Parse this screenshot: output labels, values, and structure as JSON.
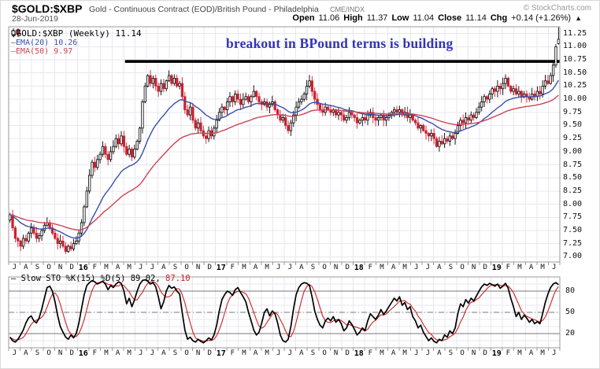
{
  "header": {
    "symbol": "$GOLD:$XBP",
    "description": "Gold - Continuous Contract (EOD)/British Pound - Philadelphia",
    "exchange": "CME/INDX",
    "credit": "© StockCharts.com",
    "date": "28-Jun-2019",
    "quote": {
      "open_label": "Open",
      "open_value": "11.06",
      "high_label": "High",
      "high_value": "11.37",
      "low_label": "Low",
      "low_value": "11.04",
      "close_label": "Close",
      "close_value": "11.14",
      "chg_label": "Chg",
      "chg_value": "+0.14 (+1.26%)",
      "direction": "▲"
    }
  },
  "main_chart": {
    "legend": {
      "dash": "—",
      "symbol_line": "$GOLD:$XBP (Weekly) 11.14",
      "ema20": "EMA(20) 10.26",
      "ema50": "EMA(50) 9.97"
    },
    "annotation": "breakout in BPound terms is building"
  },
  "lower_panel": {
    "legend": {
      "dash": "—",
      "black": "Slow STO %K(15) %D(5) 89.02,",
      "red": "87.10"
    }
  },
  "colors": {
    "up": "#000000",
    "down": "#cc2233",
    "ema20": "#3a4fa8",
    "ema50": "#cc4455",
    "annotation": "#3333bb",
    "stoch_k": "#000000",
    "stoch_d": "#cc2222",
    "grid": "#e7e7f0",
    "frame": "#999999",
    "hline": "#777777",
    "resistance": "#000000"
  },
  "chart_data": [
    {
      "type": "candlestick",
      "title": "$GOLD:$XBP (Weekly)",
      "x_months": [
        "J",
        "A",
        "S",
        "O",
        "N",
        "D",
        "16",
        "F",
        "M",
        "A",
        "M",
        "J",
        "J",
        "A",
        "S",
        "O",
        "N",
        "D",
        "17",
        "F",
        "M",
        "A",
        "M",
        "J",
        "J",
        "A",
        "S",
        "O",
        "N",
        "D",
        "18",
        "F",
        "M",
        "A",
        "M",
        "J",
        "J",
        "A",
        "S",
        "O",
        "N",
        "D",
        "19",
        "F",
        "M",
        "A",
        "M",
        "J"
      ],
      "y_ticks": [
        "11.25",
        "11.00",
        "10.75",
        "10.50",
        "10.25",
        "10.00",
        "9.75",
        "9.50",
        "9.25",
        "9.00",
        "8.75",
        "8.50",
        "8.25",
        "8.00",
        "7.75",
        "7.50",
        "7.25",
        "7.00"
      ],
      "ylim": [
        6.9,
        11.38
      ],
      "closes": [
        7.8,
        7.55,
        7.35,
        7.3,
        7.2,
        7.35,
        7.3,
        7.45,
        7.55,
        7.45,
        7.35,
        7.4,
        7.5,
        7.6,
        7.65,
        7.55,
        7.45,
        7.35,
        7.25,
        7.3,
        7.2,
        7.1,
        7.2,
        7.15,
        7.25,
        7.3,
        7.45,
        7.65,
        7.95,
        8.25,
        8.55,
        8.8,
        8.7,
        8.85,
        8.95,
        9.1,
        8.95,
        8.85,
        9.0,
        9.1,
        9.25,
        9.15,
        9.3,
        9.1,
        8.95,
        9.05,
        8.9,
        9.05,
        9.2,
        9.45,
        9.95,
        10.25,
        10.45,
        10.3,
        10.4,
        10.25,
        10.15,
        10.3,
        10.2,
        10.35,
        10.45,
        10.3,
        10.4,
        10.25,
        10.3,
        10.05,
        9.8,
        9.7,
        9.85,
        9.6,
        9.45,
        9.55,
        9.4,
        9.3,
        9.25,
        9.4,
        9.3,
        9.45,
        9.6,
        9.75,
        9.85,
        9.8,
        9.95,
        10.05,
        9.95,
        10.1,
        10.0,
        9.9,
        10.0,
        10.05,
        9.95,
        10.05,
        10.15,
        10.05,
        9.95,
        9.9,
        9.95,
        9.85,
        9.9,
        9.95,
        9.8,
        9.7,
        9.6,
        9.65,
        9.5,
        9.4,
        9.55,
        9.7,
        9.85,
        9.95,
        10.0,
        10.1,
        10.25,
        10.35,
        10.15,
        10.0,
        9.9,
        9.8,
        9.75,
        9.85,
        9.8,
        9.75,
        9.8,
        9.7,
        9.75,
        9.7,
        9.6,
        9.65,
        9.75,
        9.7,
        9.65,
        9.55,
        9.6,
        9.65,
        9.6,
        9.7,
        9.75,
        9.65,
        9.6,
        9.65,
        9.7,
        9.6,
        9.65,
        9.7,
        9.75,
        9.8,
        9.75,
        9.8,
        9.7,
        9.75,
        9.65,
        9.7,
        9.6,
        9.55,
        9.45,
        9.5,
        9.4,
        9.35,
        9.3,
        9.35,
        9.25,
        9.1,
        9.2,
        9.15,
        9.25,
        9.2,
        9.3,
        9.25,
        9.35,
        9.5,
        9.6,
        9.55,
        9.65,
        9.6,
        9.7,
        9.65,
        9.75,
        9.85,
        9.95,
        10.05,
        10.0,
        10.1,
        10.2,
        10.15,
        10.25,
        10.2,
        10.3,
        10.4,
        10.25,
        10.15,
        10.2,
        10.1,
        10.15,
        10.05,
        10.1,
        10.05,
        10.0,
        10.1,
        10.05,
        10.15,
        10.1,
        10.25,
        10.35,
        10.3,
        10.45,
        10.65,
        11.0,
        11.14
      ],
      "last_week_ohlc": {
        "open": 11.06,
        "high": 11.37,
        "low": 11.04,
        "close": 11.14
      },
      "overlays": [
        {
          "name": "EMA(20)",
          "last_value": 10.26
        },
        {
          "name": "EMA(50)",
          "last_value": 9.97
        }
      ],
      "resistance_line": {
        "level": 10.72,
        "start_week": 44,
        "end_week": 208
      }
    },
    {
      "type": "line",
      "title": "Slow STO %K(15) %D(5)",
      "k_values": [
        15,
        10,
        8,
        12,
        18,
        25,
        35,
        42,
        45,
        38,
        35,
        42,
        55,
        70,
        85,
        87,
        80,
        65,
        45,
        30,
        22,
        15,
        12,
        18,
        14,
        20,
        35,
        55,
        75,
        88,
        92,
        95,
        93,
        90,
        92,
        94,
        90,
        82,
        88,
        85,
        90,
        93,
        91,
        80,
        62,
        70,
        58,
        68,
        80,
        90,
        95,
        96,
        94,
        90,
        92,
        86,
        72,
        55,
        65,
        80,
        88,
        84,
        86,
        80,
        76,
        50,
        25,
        12,
        15,
        10,
        8,
        12,
        9,
        7,
        10,
        14,
        11,
        18,
        32,
        52,
        68,
        75,
        80,
        78,
        74,
        82,
        85,
        78,
        72,
        65,
        50,
        38,
        25,
        18,
        22,
        35,
        50,
        55,
        45,
        52,
        48,
        35,
        18,
        10,
        8,
        12,
        30,
        55,
        75,
        85,
        90,
        92,
        91,
        88,
        72,
        52,
        40,
        32,
        28,
        38,
        42,
        38,
        44,
        36,
        40,
        34,
        24,
        28,
        38,
        33,
        26,
        18,
        22,
        28,
        24,
        38,
        48,
        44,
        40,
        46,
        54,
        47,
        52,
        58,
        64,
        70,
        66,
        72,
        60,
        64,
        54,
        58,
        44,
        38,
        28,
        32,
        22,
        16,
        10,
        14,
        9,
        7,
        12,
        10,
        18,
        15,
        24,
        20,
        28,
        48,
        62,
        58,
        68,
        63,
        70,
        66,
        73,
        80,
        86,
        90,
        88,
        91,
        89,
        87,
        90,
        84,
        87,
        91,
        84,
        70,
        58,
        44,
        50,
        40,
        46,
        42,
        36,
        40,
        34,
        37,
        34,
        48,
        64,
        76,
        85,
        90,
        92,
        89.02
      ],
      "k_last": 89.02,
      "d_last": 87.1,
      "y_ticks": [
        80,
        50,
        20
      ],
      "ylim": [
        0,
        100
      ],
      "hlines": {
        "solid": [
          20,
          80
        ],
        "dashed": [
          50
        ]
      }
    }
  ]
}
